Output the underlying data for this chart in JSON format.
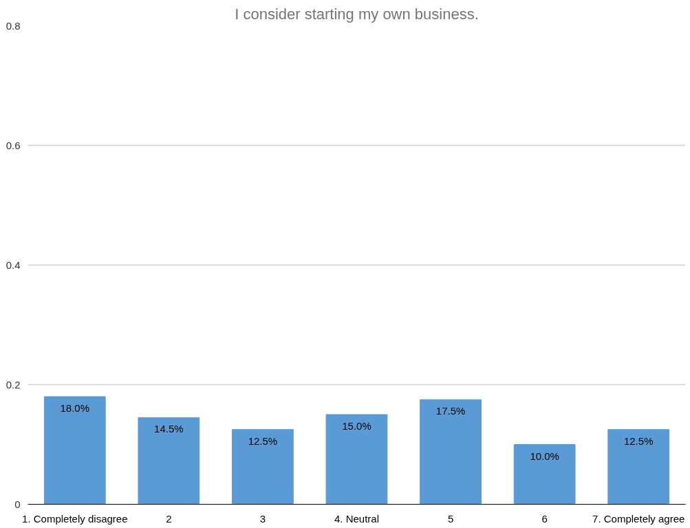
{
  "chart_data": {
    "type": "bar",
    "title": "I consider starting my own business.",
    "categories": [
      "1. Completely disagree",
      "2",
      "3",
      "4. Neutral",
      "5",
      "6",
      "7. Completely agree"
    ],
    "values": [
      0.18,
      0.145,
      0.125,
      0.15,
      0.175,
      0.1,
      0.125
    ],
    "value_labels": [
      "18.0%",
      "14.5%",
      "12.5%",
      "15.0%",
      "17.5%",
      "10.0%",
      "12.5%"
    ],
    "color": "#5b9bd5",
    "ylim": [
      0,
      0.8
    ],
    "yticks": [
      0,
      0.2,
      0.4,
      0.6,
      0.8
    ],
    "grid": "y"
  }
}
